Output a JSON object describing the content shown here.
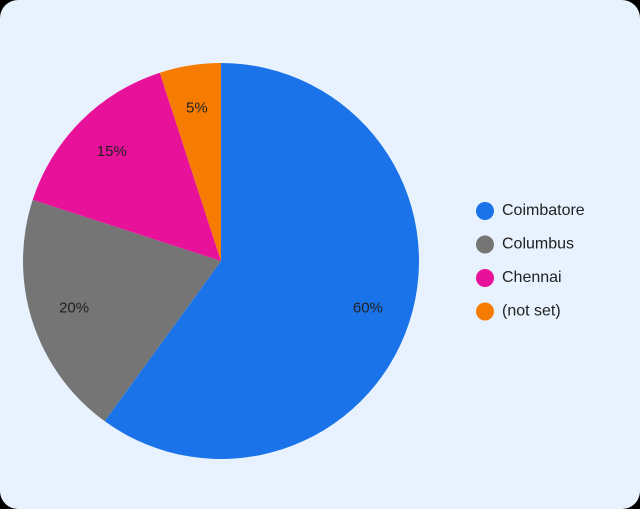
{
  "chart_data": {
    "type": "pie",
    "categories": [
      "Coimbatore",
      "Columbus",
      "Chennai",
      "(not set)"
    ],
    "values": [
      60,
      20,
      15,
      5
    ],
    "value_labels": [
      "60%",
      "20%",
      "15%",
      "5%"
    ],
    "colors": [
      "#1a73e8",
      "#757575",
      "#e8119a",
      "#f57c00"
    ],
    "legend": "right"
  }
}
